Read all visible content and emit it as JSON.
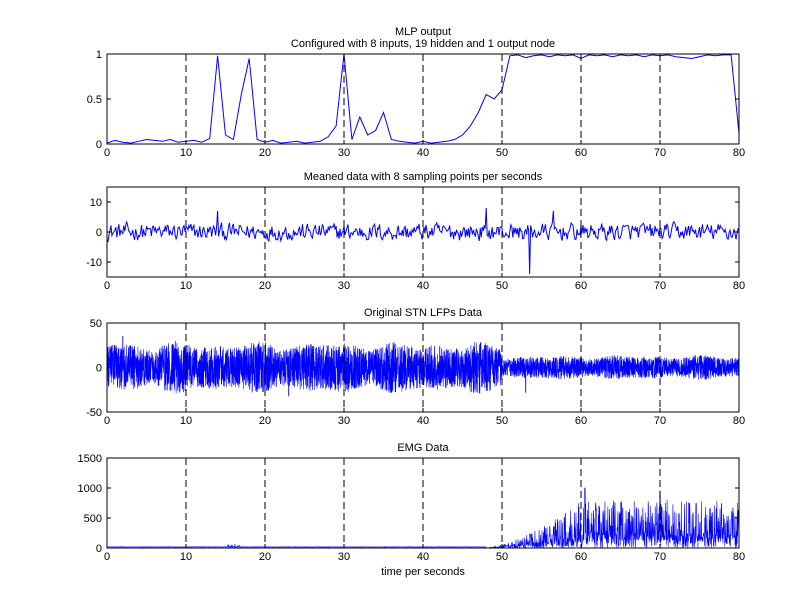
{
  "chart_data": [
    {
      "type": "line",
      "title": "MLP output",
      "subtitle": "Configured with 8 inputs, 19 hidden and 1 output node",
      "xlabel": "",
      "ylabel": "",
      "xlim": [
        0,
        80
      ],
      "ylim": [
        0,
        1
      ],
      "xticks": [
        0,
        10,
        20,
        30,
        40,
        50,
        60,
        70,
        80
      ],
      "yticks": [
        0,
        0.5,
        1
      ],
      "ytick_labels": [
        "0",
        "0.5",
        "1"
      ],
      "vlines": [
        10,
        20,
        30,
        40,
        50,
        60,
        70
      ],
      "series": [
        {
          "color": "#0000ff",
          "x": [
            0,
            1,
            2,
            3,
            4,
            5,
            6,
            7,
            8,
            9,
            10,
            11,
            12,
            13,
            14,
            15,
            16,
            17,
            18,
            19,
            20,
            21,
            22,
            23,
            24,
            25,
            26,
            27,
            28,
            29,
            30,
            31,
            32,
            33,
            34,
            35,
            36,
            37,
            38,
            39,
            40,
            41,
            42,
            43,
            44,
            45,
            46,
            47,
            48,
            49,
            50,
            51,
            52,
            53,
            54,
            55,
            56,
            57,
            58,
            59,
            60,
            61,
            62,
            63,
            64,
            65,
            66,
            67,
            68,
            69,
            70,
            71,
            72,
            73,
            74,
            75,
            76,
            77,
            78,
            79,
            80
          ],
          "y": [
            0.01,
            0.04,
            0.02,
            0.01,
            0.03,
            0.05,
            0.04,
            0.03,
            0.05,
            0.02,
            0.03,
            0.04,
            0.02,
            0.06,
            0.98,
            0.1,
            0.05,
            0.55,
            0.95,
            0.05,
            0.02,
            0.04,
            0.01,
            0.02,
            0.03,
            0.01,
            0.02,
            0.03,
            0.08,
            0.2,
            1.0,
            0.05,
            0.3,
            0.1,
            0.15,
            0.35,
            0.05,
            0.03,
            0.02,
            0.01,
            0.03,
            0.01,
            0.02,
            0.03,
            0.05,
            0.1,
            0.2,
            0.35,
            0.55,
            0.5,
            0.6,
            0.98,
            0.99,
            0.96,
            0.98,
            0.99,
            0.97,
            0.99,
            0.98,
            0.99,
            0.95,
            0.99,
            0.98,
            0.99,
            0.97,
            0.99,
            0.98,
            0.99,
            0.97,
            0.99,
            0.98,
            0.99,
            0.97,
            0.96,
            0.95,
            0.97,
            0.99,
            0.98,
            0.99,
            0.99,
            0.12
          ]
        }
      ]
    },
    {
      "type": "line",
      "title": "Meaned data with 8 sampling points per seconds",
      "xlabel": "",
      "ylabel": "",
      "xlim": [
        0,
        80
      ],
      "ylim": [
        -15,
        15
      ],
      "xticks": [
        0,
        10,
        20,
        30,
        40,
        50,
        60,
        70,
        80
      ],
      "yticks": [
        -10,
        0,
        10
      ],
      "ytick_labels": [
        "-10",
        "0",
        "10"
      ],
      "vlines": [
        10,
        20,
        30,
        40,
        50,
        60,
        70
      ],
      "series": [
        {
          "color": "#0000ff",
          "x_range": [
            0,
            80
          ],
          "points": 640,
          "typical_amplitude": 3,
          "events": [
            {
              "x": 14,
              "y": 7
            },
            {
              "x": 48,
              "y": 8
            },
            {
              "x": 53.5,
              "y": -14
            },
            {
              "x": 56.5,
              "y": 7
            }
          ]
        }
      ]
    },
    {
      "type": "line",
      "title": "Original STN LFPs Data",
      "xlabel": "",
      "ylabel": "",
      "xlim": [
        0,
        80
      ],
      "ylim": [
        -50,
        50
      ],
      "xticks": [
        0,
        10,
        20,
        30,
        40,
        50,
        60,
        70,
        80
      ],
      "yticks": [
        -50,
        0,
        50
      ],
      "ytick_labels": [
        "-50",
        "0",
        "50"
      ],
      "vlines": [
        10,
        20,
        30,
        40,
        50,
        60,
        70
      ],
      "series": [
        {
          "color": "#0000ff",
          "x_range": [
            0,
            80
          ],
          "envelope_before_50s": 25,
          "envelope_after_50s": 12,
          "peaks": [
            {
              "x": 2,
              "y": 35
            },
            {
              "x": 23,
              "y": -32
            },
            {
              "x": 53,
              "y": -28
            }
          ]
        }
      ]
    },
    {
      "type": "line",
      "title": "EMG Data",
      "xlabel": "time per seconds",
      "ylabel": "",
      "xlim": [
        0,
        80
      ],
      "ylim": [
        0,
        1500
      ],
      "xticks": [
        0,
        10,
        20,
        30,
        40,
        50,
        60,
        70,
        80
      ],
      "yticks": [
        0,
        500,
        1000,
        1500
      ],
      "ytick_labels": [
        "0",
        "500",
        "1000",
        "1500"
      ],
      "vlines": [
        10,
        20,
        30,
        40,
        50,
        60,
        70
      ],
      "series": [
        {
          "color": "#0000ff",
          "x_range": [
            0,
            80
          ],
          "baseline": 15,
          "small_burst": {
            "x": [
              15,
              17
            ],
            "max": 70
          },
          "activity_start": 48,
          "activity_max": [
            1000,
            950,
            800
          ],
          "notable_peaks": [
            {
              "x": 60.5,
              "y": 1000
            },
            {
              "x": 70,
              "y": 950
            }
          ]
        }
      ]
    }
  ]
}
